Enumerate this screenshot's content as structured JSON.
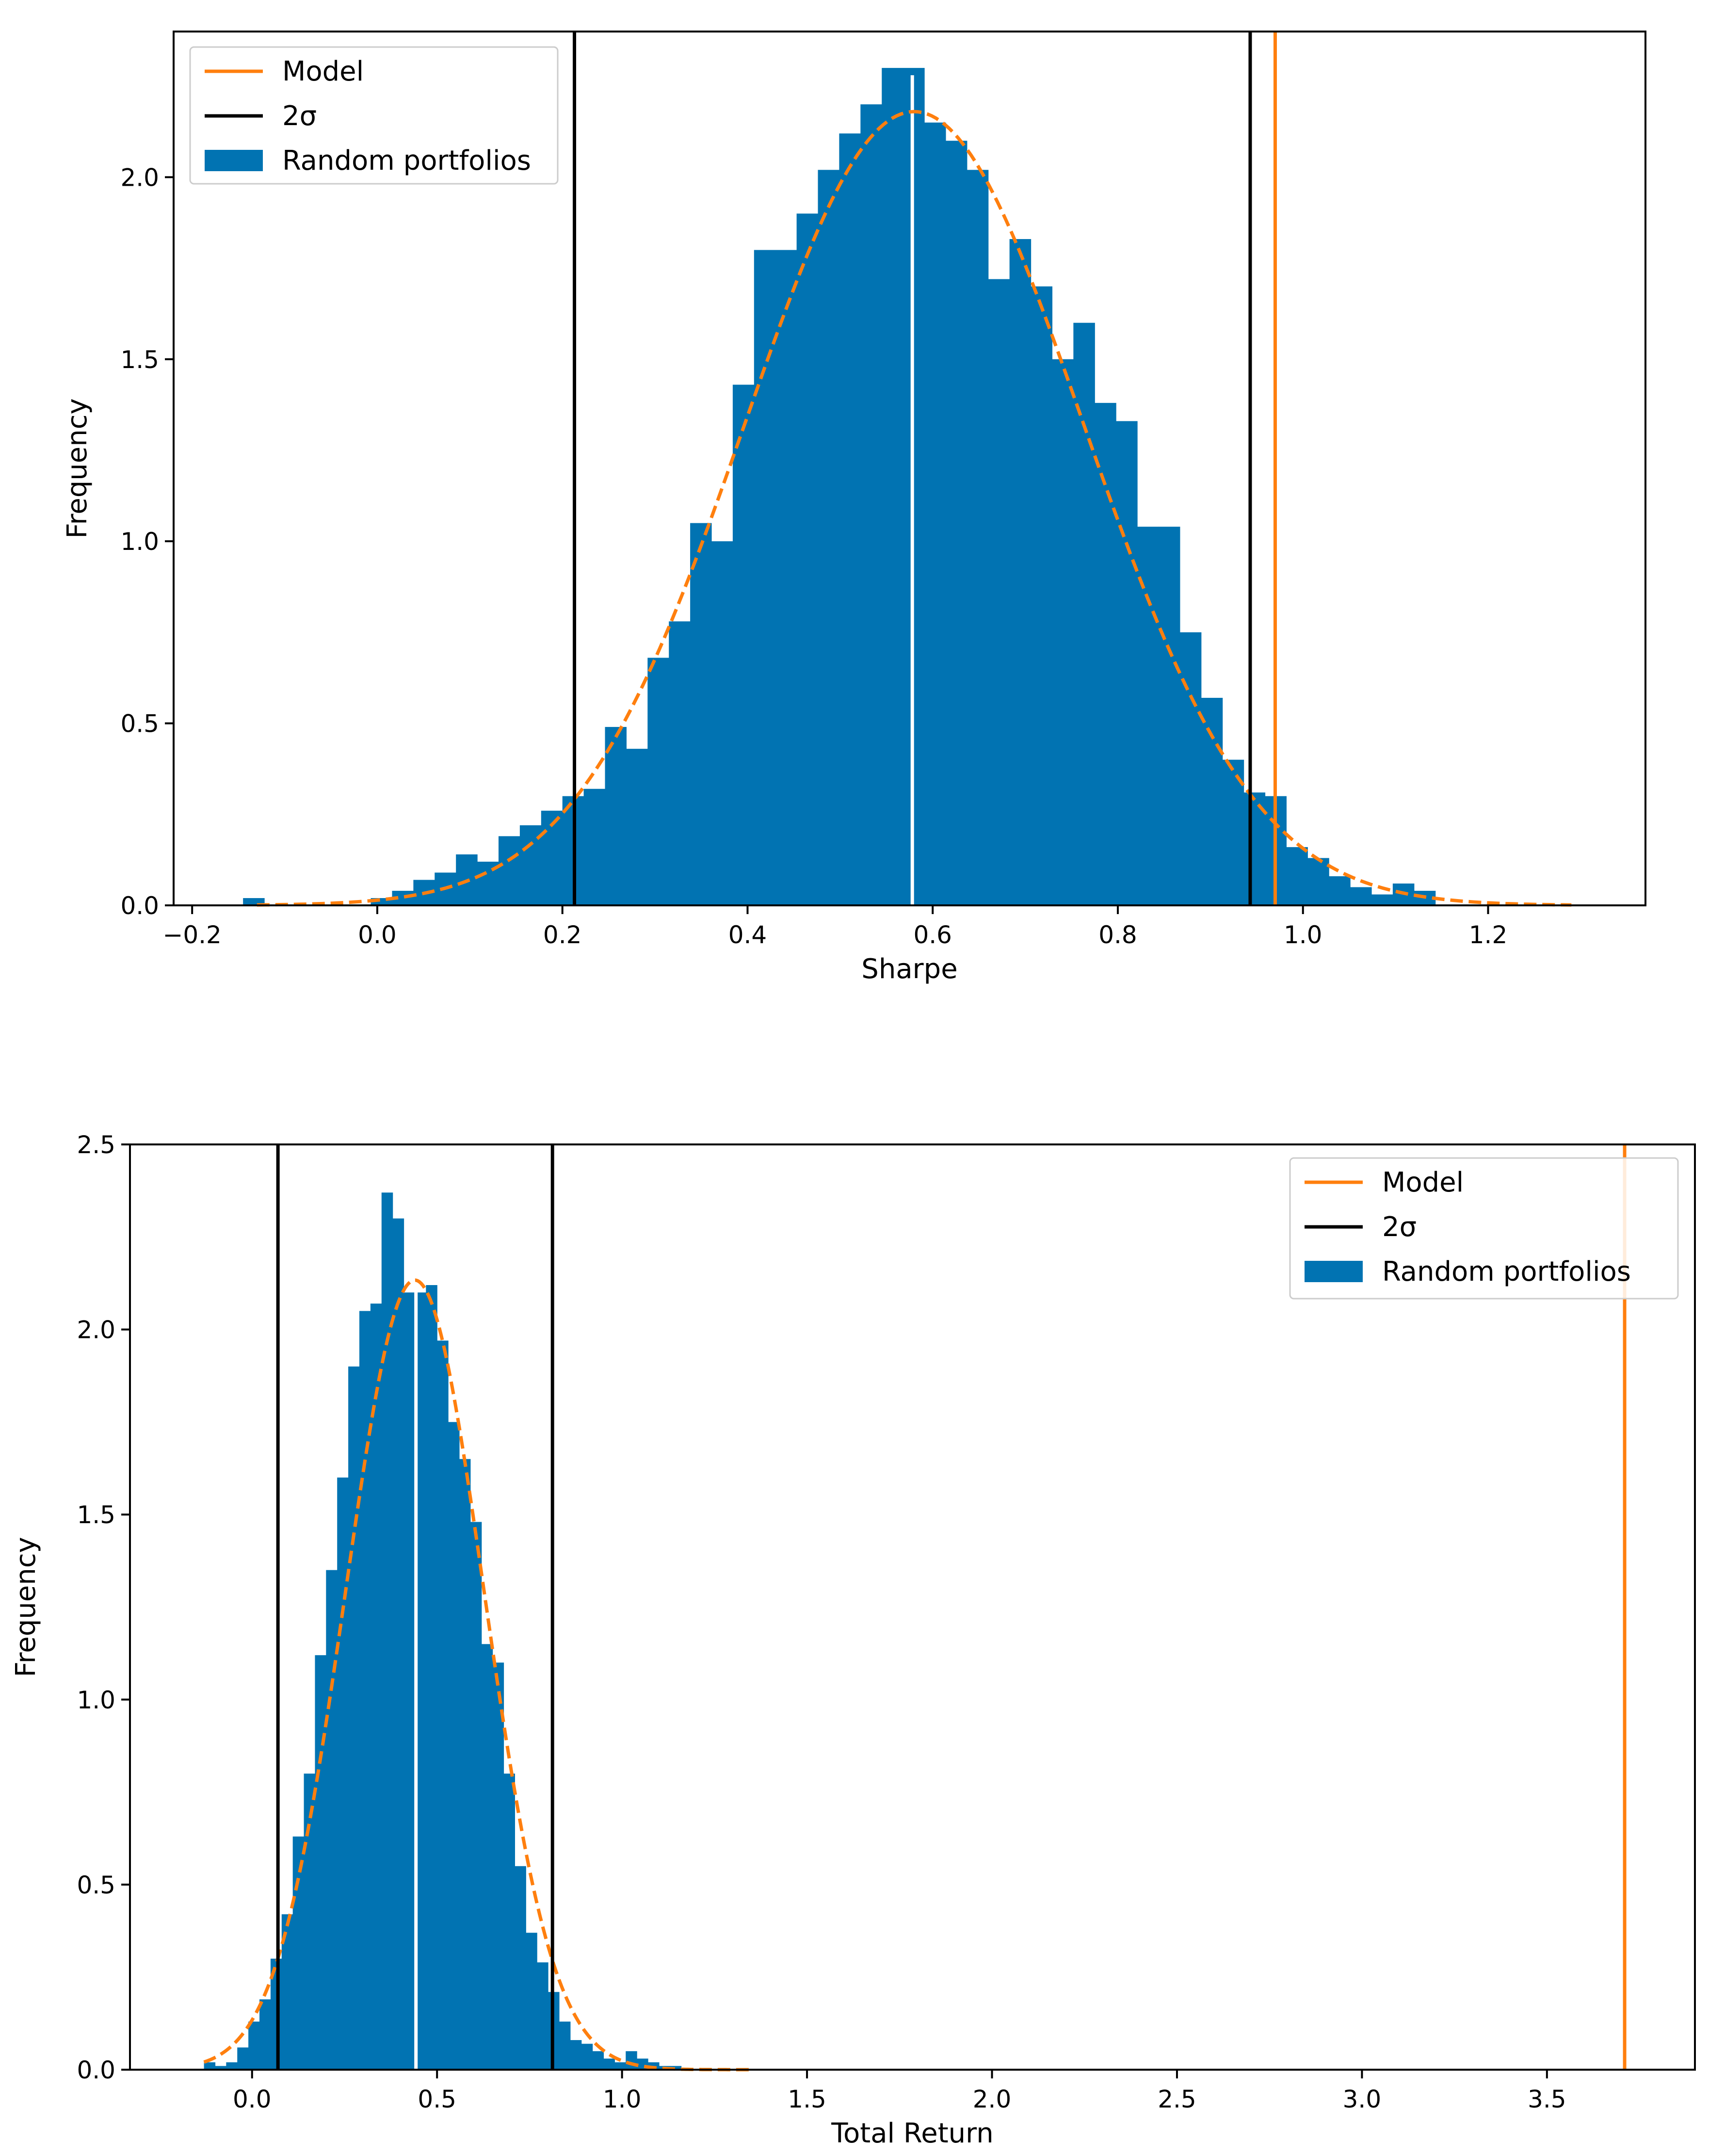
{
  "chart_data": [
    {
      "type": "histogram",
      "title": "",
      "xlabel": "Sharpe",
      "ylabel": "Frequency",
      "xlim": [
        -0.22,
        1.37
      ],
      "ylim": [
        0,
        2.4
      ],
      "xticks": [
        -0.2,
        0.0,
        0.2,
        0.4,
        0.6,
        0.8,
        1.0,
        1.2
      ],
      "xtick_labels": [
        "−0.2",
        "0.0",
        "0.2",
        "0.4",
        "0.6",
        "0.8",
        "1.0",
        "1.2"
      ],
      "yticks": [
        0.0,
        0.5,
        1.0,
        1.5,
        2.0
      ],
      "ytick_labels": [
        "0.0",
        "0.5",
        "1.0",
        "1.5",
        "2.0"
      ],
      "legend": {
        "position": "upper-left",
        "entries": [
          {
            "label": "Model",
            "kind": "line",
            "color": "#ff7f0e"
          },
          {
            "label": "2σ",
            "kind": "line",
            "color": "#000000"
          },
          {
            "label": "Random portfolios",
            "kind": "patch",
            "color": "#0173b2"
          }
        ]
      },
      "histogram": {
        "name": "Random portfolios",
        "color": "#0173b2",
        "bin_edges": [
          -0.145,
          -0.122,
          -0.099,
          -0.076,
          -0.053,
          -0.03,
          -0.007,
          0.016,
          0.039,
          0.062,
          0.085,
          0.108,
          0.131,
          0.154,
          0.177,
          0.2,
          0.223,
          0.246,
          0.269,
          0.292,
          0.315,
          0.338,
          0.361,
          0.384,
          0.407,
          0.43,
          0.453,
          0.476,
          0.499,
          0.522,
          0.545,
          0.568,
          0.591,
          0.614,
          0.637,
          0.66,
          0.683,
          0.706,
          0.729,
          0.752,
          0.775,
          0.798,
          0.821,
          0.844,
          0.867,
          0.89,
          0.913,
          0.936,
          0.959,
          0.982,
          1.005,
          1.028,
          1.051,
          1.074,
          1.097,
          1.12,
          1.143
        ],
        "values": [
          0.02,
          0.0,
          0.0,
          0.0,
          0.0,
          0.0,
          0.02,
          0.04,
          0.07,
          0.09,
          0.14,
          0.12,
          0.19,
          0.22,
          0.26,
          0.3,
          0.32,
          0.49,
          0.43,
          0.68,
          0.78,
          1.05,
          1.0,
          1.43,
          1.8,
          1.8,
          1.9,
          2.02,
          2.12,
          2.2,
          2.3,
          2.3,
          2.15,
          2.1,
          2.02,
          1.72,
          1.83,
          1.7,
          1.5,
          1.6,
          1.38,
          1.33,
          1.04,
          1.04,
          0.75,
          0.57,
          0.4,
          0.31,
          0.3,
          0.16,
          0.13,
          0.08,
          0.05,
          0.03,
          0.06,
          0.04
        ]
      },
      "fit_curve": {
        "name": "Normal fit",
        "style": "dashed",
        "color": "#ff7f0e",
        "mean": 0.58,
        "std": 0.183,
        "x_range": [
          -0.13,
          1.29
        ]
      },
      "mean_line": {
        "x": 0.578,
        "color": "#ffffff"
      },
      "two_sigma_lines": {
        "x": [
          0.213,
          0.943
        ],
        "color": "#000000"
      },
      "model_line": {
        "x": 0.97,
        "color": "#ff7f0e"
      }
    },
    {
      "type": "histogram",
      "title": "",
      "xlabel": "Total Return",
      "ylabel": "Frequency",
      "xlim": [
        -0.33,
        3.9
      ],
      "ylim": [
        0,
        2.5
      ],
      "xticks": [
        0.0,
        0.5,
        1.0,
        1.5,
        2.0,
        2.5,
        3.0,
        3.5
      ],
      "xtick_labels": [
        "0.0",
        "0.5",
        "1.0",
        "1.5",
        "2.0",
        "2.5",
        "3.0",
        "3.5"
      ],
      "yticks": [
        0.0,
        0.5,
        1.0,
        1.5,
        2.0,
        2.5
      ],
      "ytick_labels": [
        "0.0",
        "0.5",
        "1.0",
        "1.5",
        "2.0",
        "2.5"
      ],
      "legend": {
        "position": "upper-right",
        "entries": [
          {
            "label": "Model",
            "kind": "line",
            "color": "#ff7f0e"
          },
          {
            "label": "2σ",
            "kind": "line",
            "color": "#000000"
          },
          {
            "label": "Random portfolios",
            "kind": "patch",
            "color": "#0173b2"
          }
        ]
      },
      "histogram": {
        "name": "Random portfolios",
        "color": "#0173b2",
        "bin_edges": [
          -0.13,
          -0.1,
          -0.07,
          -0.04,
          -0.01,
          0.02,
          0.05,
          0.08,
          0.11,
          0.14,
          0.17,
          0.2,
          0.23,
          0.26,
          0.29,
          0.32,
          0.35,
          0.38,
          0.41,
          0.44,
          0.47,
          0.5,
          0.53,
          0.56,
          0.59,
          0.62,
          0.65,
          0.68,
          0.71,
          0.74,
          0.77,
          0.8,
          0.83,
          0.86,
          0.89,
          0.92,
          0.95,
          0.98,
          1.01,
          1.04,
          1.07,
          1.1,
          1.13,
          1.16
        ],
        "values": [
          0.02,
          0.01,
          0.02,
          0.06,
          0.13,
          0.19,
          0.3,
          0.42,
          0.63,
          0.8,
          1.12,
          1.35,
          1.6,
          1.9,
          2.05,
          2.07,
          2.37,
          2.3,
          2.1,
          2.1,
          2.12,
          1.97,
          1.75,
          1.65,
          1.48,
          1.15,
          1.1,
          0.8,
          0.55,
          0.37,
          0.29,
          0.21,
          0.13,
          0.08,
          0.07,
          0.05,
          0.03,
          0.02,
          0.05,
          0.03,
          0.02,
          0.01,
          0.01
        ]
      },
      "fit_curve": {
        "name": "Normal fit",
        "style": "dashed",
        "color": "#ff7f0e",
        "mean": 0.44,
        "std": 0.187,
        "x_range": [
          -0.13,
          1.35
        ]
      },
      "mean_line": {
        "x": 0.443,
        "color": "#ffffff"
      },
      "two_sigma_lines": {
        "x": [
          0.07,
          0.812
        ],
        "color": "#000000"
      },
      "model_line": {
        "x": 3.71,
        "color": "#ff7f0e"
      }
    }
  ]
}
